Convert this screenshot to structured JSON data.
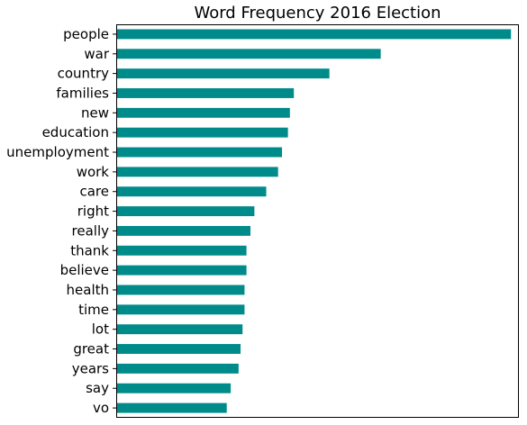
{
  "chart_data": {
    "type": "bar",
    "orientation": "horizontal",
    "title": "Word Frequency 2016 Election",
    "xlabel": "",
    "ylabel": "",
    "x_ticks_visible": false,
    "xlim": [
      0,
      102
    ],
    "grid": false,
    "legend": "none",
    "bar_color": "#008b8b",
    "categories": [
      "people",
      "war",
      "country",
      "families",
      "new",
      "education",
      "unemployment",
      "work",
      "care",
      "right",
      "really",
      "thank",
      "believe",
      "health",
      "time",
      "lot",
      "great",
      "years",
      "say",
      "vo"
    ],
    "values": [
      100,
      67,
      54,
      45,
      44,
      43.5,
      42,
      41,
      38,
      35,
      34,
      33,
      33,
      32.5,
      32.5,
      32,
      31.5,
      31,
      29,
      28
    ]
  }
}
